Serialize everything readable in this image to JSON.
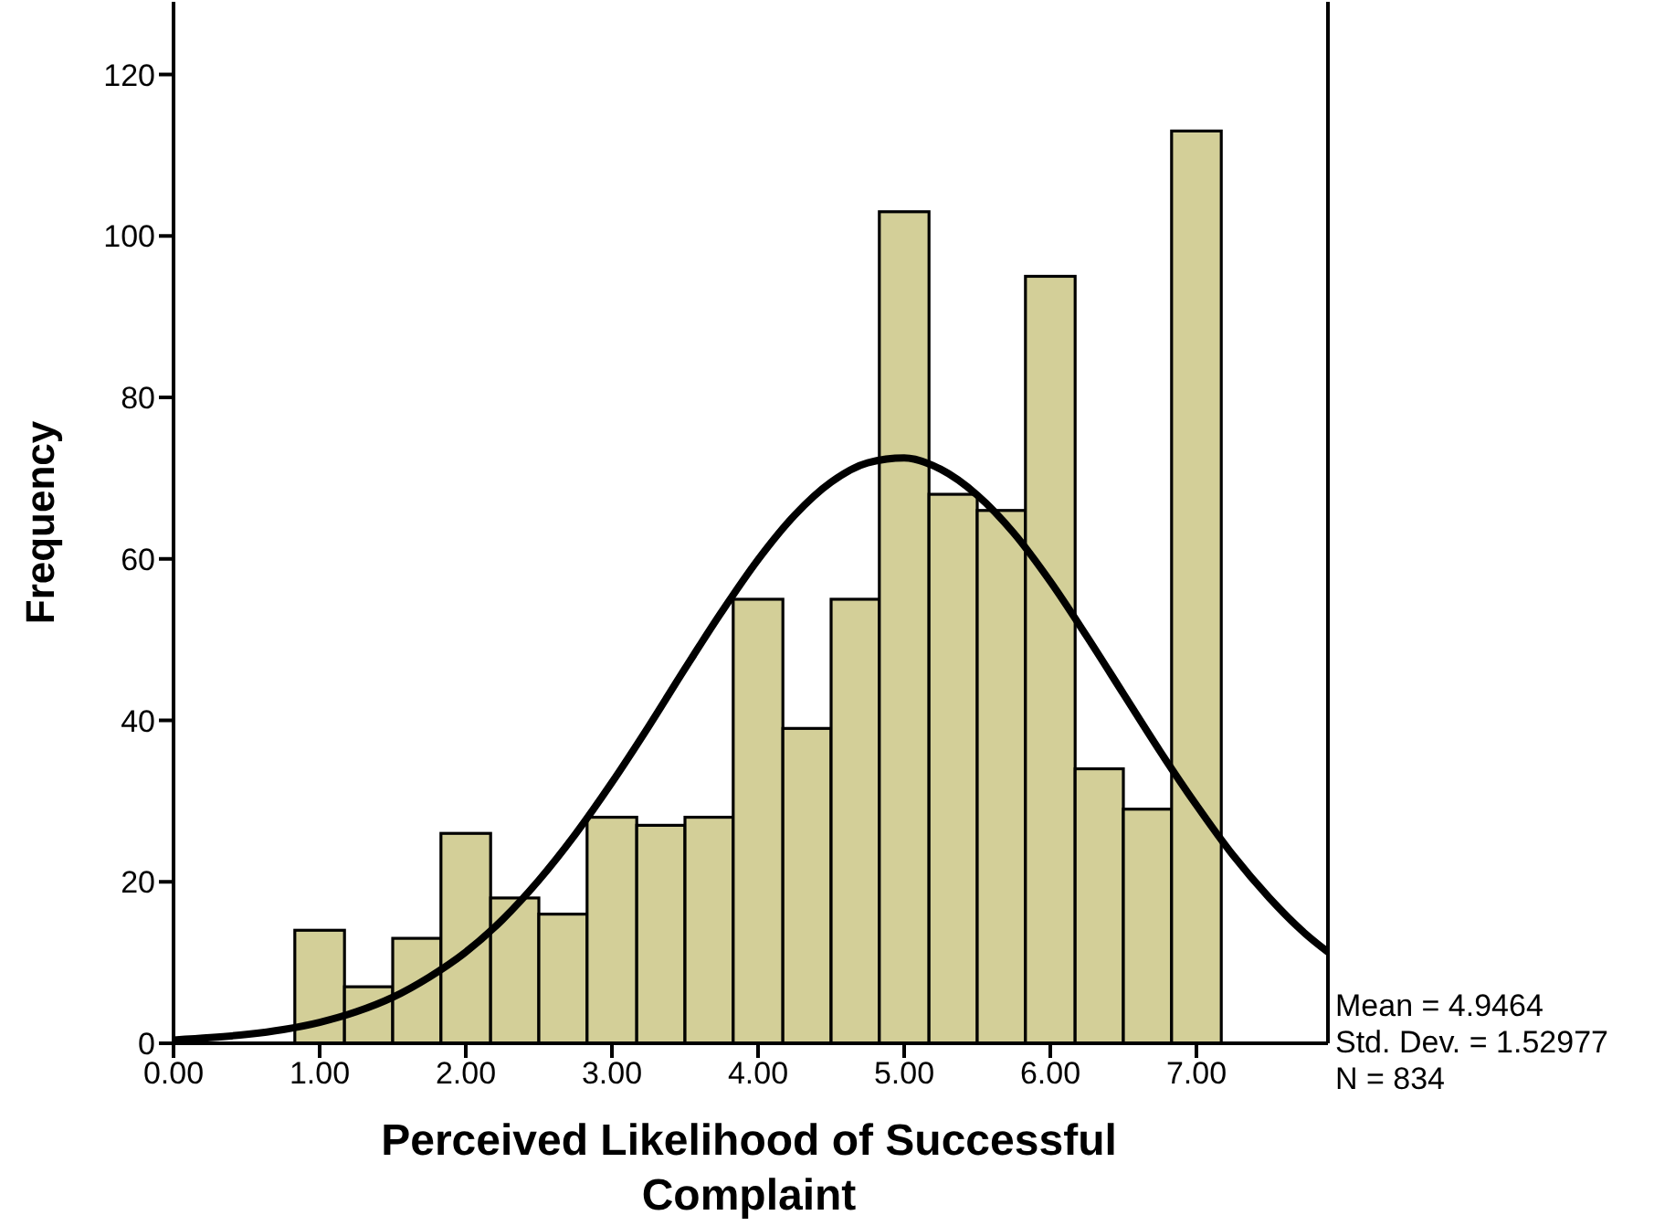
{
  "chart_data": {
    "type": "histogram",
    "xlabel": "Perceived Likelihood of Successful Complaint",
    "ylabel": "Frequency",
    "bins": [
      0.83,
      1.17,
      1.5,
      1.83,
      2.17,
      2.5,
      2.83,
      3.17,
      3.5,
      3.83,
      4.17,
      4.5,
      4.83,
      5.17,
      5.5,
      5.83,
      6.17,
      6.5,
      6.83,
      7.17
    ],
    "values": [
      14,
      7,
      13,
      26,
      18,
      16,
      28,
      27,
      28,
      55,
      39,
      55,
      103,
      68,
      66,
      95,
      34,
      29,
      113
    ],
    "color": "#d3cf98",
    "series": [
      {
        "type": "line",
        "color": "#000000",
        "x": [
          0,
          0.25,
          0.5,
          0.75,
          1,
          1.25,
          1.5,
          1.75,
          2,
          2.25,
          2.5,
          2.75,
          3,
          3.25,
          3.5,
          3.75,
          4,
          4.25,
          4.5,
          4.75,
          5,
          5.25,
          5.5,
          5.75,
          6,
          6.25,
          6.5,
          6.75,
          7,
          7.25,
          7.5,
          7.75,
          7.9
        ],
        "values": [
          0.4,
          0.7,
          1.1,
          1.7,
          2.6,
          3.9,
          5.7,
          8.2,
          11.3,
          15.3,
          20.2,
          25.9,
          32.3,
          39.2,
          46.4,
          53.4,
          59.9,
          65.4,
          69.5,
          71.9,
          72.5,
          71.1,
          67.9,
          63.2,
          57.2,
          50.4,
          43.3,
          36.2,
          29.5,
          23.3,
          18.0,
          13.5,
          11.3
        ]
      }
    ],
    "marker": "none",
    "xlim": [
      0,
      7.9
    ],
    "xticks": [
      {
        "value": 0,
        "label": "0.00"
      },
      {
        "value": 1,
        "label": "1.00"
      },
      {
        "value": 2,
        "label": "2.00"
      },
      {
        "value": 3,
        "label": "3.00"
      },
      {
        "value": 4,
        "label": "4.00"
      },
      {
        "value": 5,
        "label": "5.00"
      },
      {
        "value": 6,
        "label": "6.00"
      },
      {
        "value": 7,
        "label": "7.00"
      }
    ],
    "ylim": [
      0,
      129
    ],
    "yticks": [
      0,
      20,
      40,
      60,
      80,
      100,
      120
    ],
    "annotations": [
      "Mean = 4.9464",
      "Std. Dev. = 1.52977",
      "N = 834"
    ]
  }
}
